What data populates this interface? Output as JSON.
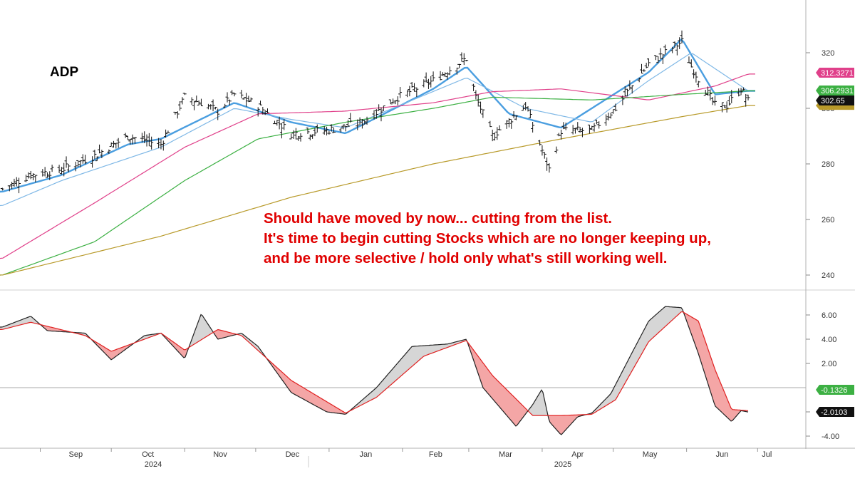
{
  "ticker": "ADP",
  "annotation": {
    "lines": [
      "Should have moved by now... cutting from the list.",
      "It's time to begin cutting Stocks which are no longer keeping up,",
      "and be more selective / hold only what's still working well."
    ],
    "color": "#e00000"
  },
  "colors": {
    "ma_fast": "#4a9ee0",
    "ma_mid": "#7fb8e6",
    "ma_50": "#e0408a",
    "ma_100": "#3cb043",
    "ma_200": "#b89a2a",
    "macd_line": "#222222",
    "signal_line": "#e02020",
    "fill_down": "#f4a6a6",
    "fill_up": "#d6d6d6",
    "tag_pink": "#e0408a",
    "tag_green": "#3cb043",
    "tag_black": "#111111",
    "tag_gold": "#b89a2a"
  },
  "chart_data": [
    {
      "type": "ohlc",
      "ticker": "ADP",
      "y_axis": {
        "ticks": [
          240,
          260,
          280,
          300,
          320
        ],
        "range": [
          236,
          336
        ]
      },
      "x_axis": {
        "months": [
          "Sep",
          "Oct",
          "Nov",
          "Dec",
          "Jan",
          "Feb",
          "Mar",
          "Apr",
          "May",
          "Jun",
          "Jul"
        ],
        "years": [
          "2024",
          "2025"
        ]
      },
      "close_path": [
        [
          "2024-08-16",
          271
        ],
        [
          "2024-08-28",
          276
        ],
        [
          "2024-09-10",
          278
        ],
        [
          "2024-09-24",
          283
        ],
        [
          "2024-10-08",
          290
        ],
        [
          "2024-10-22",
          287
        ],
        [
          "2024-11-01",
          304
        ],
        [
          "2024-11-08",
          302
        ],
        [
          "2024-11-15",
          299
        ],
        [
          "2024-11-22",
          305
        ],
        [
          "2024-12-02",
          301
        ],
        [
          "2024-12-16",
          291
        ],
        [
          "2024-12-31",
          292
        ],
        [
          "2025-01-15",
          295
        ],
        [
          "2025-01-30",
          304
        ],
        [
          "2025-02-14",
          310
        ],
        [
          "2025-02-28",
          318
        ],
        [
          "2025-03-04",
          304
        ],
        [
          "2025-03-11",
          290
        ],
        [
          "2025-03-25",
          301
        ],
        [
          "2025-04-04",
          278
        ],
        [
          "2025-04-09",
          292
        ],
        [
          "2025-04-22",
          292
        ],
        [
          "2025-05-02",
          300
        ],
        [
          "2025-05-16",
          316
        ],
        [
          "2025-05-30",
          324
        ],
        [
          "2025-06-03",
          315
        ],
        [
          "2025-06-13",
          301
        ],
        [
          "2025-06-18",
          301
        ],
        [
          "2025-06-24",
          307
        ],
        [
          "2025-06-27",
          302.65
        ]
      ],
      "moving_averages": [
        {
          "name": "fast",
          "color_key": "ma_fast",
          "points": [
            [
              "2024-08-16",
              270
            ],
            [
              "2024-09-10",
              276
            ],
            [
              "2024-10-08",
              287
            ],
            [
              "2024-10-22",
              289
            ],
            [
              "2024-11-22",
              302
            ],
            [
              "2024-12-16",
              295
            ],
            [
              "2025-01-08",
              291
            ],
            [
              "2025-02-14",
              307
            ],
            [
              "2025-02-28",
              315
            ],
            [
              "2025-03-18",
              298
            ],
            [
              "2025-04-09",
              293
            ],
            [
              "2025-05-16",
              313
            ],
            [
              "2025-05-30",
              325
            ],
            [
              "2025-06-13",
              305
            ],
            [
              "2025-06-27",
              306.29
            ]
          ]
        },
        {
          "name": "mid",
          "color_key": "ma_mid",
          "points": [
            [
              "2024-08-16",
              265
            ],
            [
              "2024-09-10",
              274
            ],
            [
              "2024-10-22",
              286
            ],
            [
              "2024-11-22",
              300
            ],
            [
              "2024-12-16",
              296
            ],
            [
              "2025-01-08",
              293
            ],
            [
              "2025-02-28",
              311
            ],
            [
              "2025-03-25",
              300
            ],
            [
              "2025-04-22",
              295
            ],
            [
              "2025-05-16",
              310
            ],
            [
              "2025-06-03",
              320
            ],
            [
              "2025-06-27",
              306.3
            ]
          ]
        },
        {
          "name": "50",
          "color_key": "ma_50",
          "points": [
            [
              "2024-08-16",
              246
            ],
            [
              "2024-09-24",
              266
            ],
            [
              "2024-11-01",
              286
            ],
            [
              "2024-12-02",
              298
            ],
            [
              "2025-01-08",
              299
            ],
            [
              "2025-02-14",
              302
            ],
            [
              "2025-03-11",
              306
            ],
            [
              "2025-04-09",
              307
            ],
            [
              "2025-05-16",
              303
            ],
            [
              "2025-06-13",
              308
            ],
            [
              "2025-06-27",
              312.33
            ]
          ]
        },
        {
          "name": "100",
          "color_key": "ma_100",
          "points": [
            [
              "2024-08-16",
              240
            ],
            [
              "2024-09-24",
              252
            ],
            [
              "2024-11-01",
              274
            ],
            [
              "2024-12-02",
              289
            ],
            [
              "2025-01-08",
              295
            ],
            [
              "2025-02-14",
              300
            ],
            [
              "2025-03-11",
              304
            ],
            [
              "2025-04-22",
              303
            ],
            [
              "2025-05-30",
              305
            ],
            [
              "2025-06-27",
              306.29
            ]
          ]
        },
        {
          "name": "200",
          "color_key": "ma_200",
          "points": [
            [
              "2024-08-16",
              240
            ],
            [
              "2024-10-22",
              254
            ],
            [
              "2024-12-16",
              268
            ],
            [
              "2025-02-14",
              280
            ],
            [
              "2025-04-09",
              289
            ],
            [
              "2025-05-30",
              297
            ],
            [
              "2025-06-27",
              301
            ]
          ]
        }
      ],
      "value_tags": [
        {
          "label": "312.3271",
          "color_key": "tag_pink",
          "value": 312.3271
        },
        {
          "label": "306.2931",
          "color_key": "tag_green",
          "value": 306.2931
        },
        {
          "label": "302.65",
          "color_key": "tag_black",
          "value": 302.65
        }
      ]
    },
    {
      "type": "line",
      "panel": "oscillator",
      "y_axis": {
        "ticks": [
          "6.00",
          "4.00",
          "2.00",
          "-2.00",
          "-4.00"
        ],
        "range": [
          -5,
          8
        ]
      },
      "zero_line": 0,
      "series": [
        {
          "role": "macd",
          "color_key": "macd_line",
          "points": [
            [
              "2024-08-16",
              5
            ],
            [
              "2024-08-28",
              5.9
            ],
            [
              "2024-09-04",
              4.7
            ],
            [
              "2024-09-20",
              4.5
            ],
            [
              "2024-10-01",
              2.3
            ],
            [
              "2024-10-15",
              4.3
            ],
            [
              "2024-10-22",
              4.5
            ],
            [
              "2024-11-01",
              2.4
            ],
            [
              "2024-11-08",
              6.1
            ],
            [
              "2024-11-15",
              4.0
            ],
            [
              "2024-11-25",
              4.5
            ],
            [
              "2024-12-02",
              3.4
            ],
            [
              "2024-12-16",
              -0.4
            ],
            [
              "2024-12-31",
              -2.0
            ],
            [
              "2025-01-08",
              -2.2
            ],
            [
              "2025-01-21",
              0
            ],
            [
              "2025-02-05",
              3.4
            ],
            [
              "2025-02-20",
              3.6
            ],
            [
              "2025-02-28",
              4.0
            ],
            [
              "2025-03-07",
              0
            ],
            [
              "2025-03-21",
              -3.2
            ],
            [
              "2025-03-28",
              -1.4
            ],
            [
              "2025-04-01",
              -0.1
            ],
            [
              "2025-04-04",
              -2.8
            ],
            [
              "2025-04-09",
              -3.9
            ],
            [
              "2025-04-16",
              -2.4
            ],
            [
              "2025-04-22",
              -2.1
            ],
            [
              "2025-04-30",
              -0.5
            ],
            [
              "2025-05-09",
              2.9
            ],
            [
              "2025-05-16",
              5.5
            ],
            [
              "2025-05-23",
              6.7
            ],
            [
              "2025-05-30",
              6.6
            ],
            [
              "2025-06-06",
              2.8
            ],
            [
              "2025-06-13",
              -1.5
            ],
            [
              "2025-06-20",
              -2.8
            ],
            [
              "2025-06-24",
              -1.9
            ],
            [
              "2025-06-27",
              -2.01
            ]
          ]
        },
        {
          "role": "signal",
          "color_key": "signal_line",
          "points": [
            [
              "2024-08-16",
              4.8
            ],
            [
              "2024-08-28",
              5.4
            ],
            [
              "2024-09-20",
              4.3
            ],
            [
              "2024-10-01",
              3.0
            ],
            [
              "2024-10-22",
              4.5
            ],
            [
              "2024-11-01",
              3.1
            ],
            [
              "2024-11-15",
              4.8
            ],
            [
              "2024-11-25",
              4.3
            ],
            [
              "2024-12-16",
              0.6
            ],
            [
              "2025-01-08",
              -2.1
            ],
            [
              "2025-01-21",
              -0.8
            ],
            [
              "2025-02-10",
              2.6
            ],
            [
              "2025-02-28",
              3.9
            ],
            [
              "2025-03-11",
              1.0
            ],
            [
              "2025-03-28",
              -2.3
            ],
            [
              "2025-04-09",
              -2.3
            ],
            [
              "2025-04-22",
              -2.2
            ],
            [
              "2025-05-02",
              -1.0
            ],
            [
              "2025-05-16",
              3.8
            ],
            [
              "2025-05-30",
              6.3
            ],
            [
              "2025-06-06",
              5.5
            ],
            [
              "2025-06-13",
              1.5
            ],
            [
              "2025-06-20",
              -1.8
            ],
            [
              "2025-06-27",
              -1.9
            ]
          ]
        }
      ],
      "value_tags": [
        {
          "label": "-0.1326",
          "color_key": "tag_green",
          "value": -0.1326
        },
        {
          "label": "-2.0103",
          "color_key": "tag_black",
          "value": -2.0103
        }
      ]
    }
  ]
}
